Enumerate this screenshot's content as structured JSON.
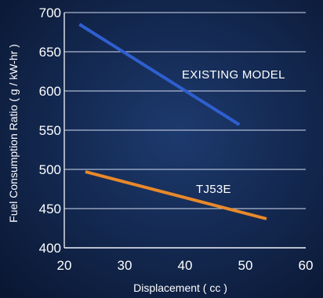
{
  "chart_data": {
    "type": "line",
    "title": "",
    "xlabel": "Displacement ( cc )",
    "ylabel": "Fuel Consumption Ratio ( g / kW-hr )",
    "xlim": [
      20,
      60
    ],
    "ylim": [
      400,
      700
    ],
    "x_ticks": [
      "20",
      "30",
      "40",
      "50",
      "60"
    ],
    "y_ticks": [
      "400",
      "450",
      "500",
      "550",
      "600",
      "650",
      "700"
    ],
    "grid": true,
    "series": [
      {
        "name": "EXISTING MODEL",
        "color": "#2f5fd0",
        "x": [
          22.5,
          49
        ],
        "y": [
          685,
          557
        ]
      },
      {
        "name": "TJ53E",
        "color": "#e8892a",
        "x": [
          23.5,
          53.5
        ],
        "y": [
          497,
          437
        ]
      }
    ]
  }
}
